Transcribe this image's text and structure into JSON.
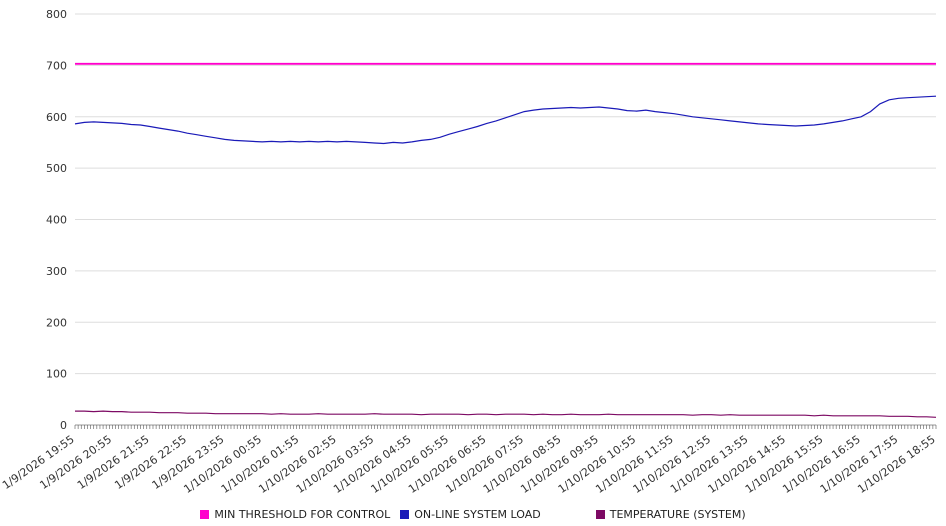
{
  "chart_data": {
    "type": "line",
    "title": "",
    "xlabel": "",
    "ylabel": "",
    "ylim": [
      0,
      800
    ],
    "yticks": [
      0,
      100,
      200,
      300,
      400,
      500,
      600,
      700,
      800
    ],
    "grid": "horizontal",
    "legend_position": "bottom",
    "background": "#ffffff",
    "x_tick_labels": [
      "1/9/2026 19:55",
      "1/9/2026 20:55",
      "1/9/2026 21:55",
      "1/9/2026 22:55",
      "1/9/2026 23:55",
      "1/10/2026 00:55",
      "1/10/2026 01:55",
      "1/10/2026 02:55",
      "1/10/2026 03:55",
      "1/10/2026 04:55",
      "1/10/2026 05:55",
      "1/10/2026 06:55",
      "1/10/2026 07:55",
      "1/10/2026 08:55",
      "1/10/2026 09:55",
      "1/10/2026 10:55",
      "1/10/2026 11:55",
      "1/10/2026 12:55",
      "1/10/2026 13:55",
      "1/10/2026 14:55",
      "1/10/2026 15:55",
      "1/10/2026 16:55",
      "1/10/2026 17:55",
      "1/10/2026 18:55"
    ],
    "series": [
      {
        "name": "MIN THRESHOLD FOR CONTROL",
        "color": "#ff00cc",
        "line_width": 1.8,
        "values": [
          703,
          703
        ]
      },
      {
        "name": "ON-LINE SYSTEM LOAD",
        "color": "#1a1ab8",
        "line_width": 1.2,
        "values": [
          586,
          589,
          590,
          589,
          588,
          587,
          585,
          584,
          581,
          578,
          575,
          572,
          568,
          565,
          562,
          559,
          556,
          554,
          553,
          552,
          551,
          552,
          551,
          552,
          551,
          552,
          551,
          552,
          551,
          552,
          551,
          550,
          549,
          548,
          550,
          549,
          551,
          554,
          556,
          560,
          566,
          571,
          576,
          581,
          587,
          592,
          598,
          604,
          610,
          613,
          615,
          616,
          617,
          618,
          617,
          618,
          619,
          617,
          615,
          612,
          611,
          613,
          610,
          608,
          606,
          603,
          600,
          598,
          596,
          594,
          592,
          590,
          588,
          586,
          585,
          584,
          583,
          582,
          583,
          584,
          586,
          589,
          592,
          596,
          600,
          610,
          625,
          633,
          636,
          637,
          638,
          639,
          640
        ]
      },
      {
        "name": "TEMPERATURE (SYSTEM)",
        "color": "#7d0a64",
        "line_width": 1.2,
        "values": [
          27,
          27,
          26,
          27,
          26,
          26,
          25,
          25,
          25,
          24,
          24,
          24,
          23,
          23,
          23,
          22,
          22,
          22,
          22,
          22,
          22,
          21,
          22,
          21,
          21,
          21,
          22,
          21,
          21,
          21,
          21,
          21,
          22,
          21,
          21,
          21,
          21,
          20,
          21,
          21,
          21,
          21,
          20,
          21,
          21,
          20,
          21,
          21,
          21,
          20,
          21,
          20,
          20,
          21,
          20,
          20,
          20,
          21,
          20,
          20,
          20,
          20,
          20,
          20,
          20,
          20,
          19,
          20,
          20,
          19,
          20,
          19,
          19,
          19,
          19,
          19,
          19,
          19,
          19,
          18,
          19,
          18,
          18,
          18,
          18,
          18,
          18,
          17,
          17,
          17,
          16,
          16,
          15
        ]
      }
    ]
  }
}
